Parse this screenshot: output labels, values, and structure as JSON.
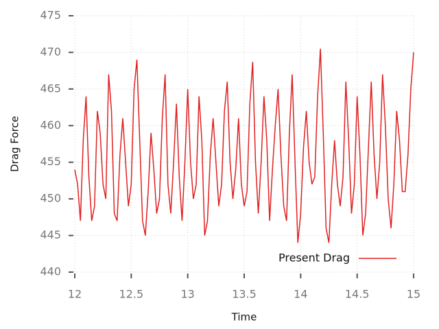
{
  "chart_data": {
    "type": "line",
    "xlabel": "Time",
    "ylabel": "Drag Force",
    "xlim": [
      12,
      15
    ],
    "xticks": [
      12,
      12.5,
      13,
      13.5,
      14,
      14.5,
      15
    ],
    "ylim": [
      440,
      475
    ],
    "yticks": [
      440,
      445,
      450,
      455,
      460,
      465,
      470,
      475
    ],
    "grid": true,
    "legend": "lower right",
    "x": [
      12,
      12.025,
      12.05,
      12.075,
      12.1,
      12.125,
      12.15,
      12.175,
      12.2,
      12.225,
      12.25,
      12.275,
      12.3,
      12.325,
      12.35,
      12.375,
      12.4,
      12.425,
      12.45,
      12.475,
      12.5,
      12.525,
      12.55,
      12.575,
      12.6,
      12.625,
      12.65,
      12.675,
      12.7,
      12.725,
      12.75,
      12.775,
      12.8,
      12.825,
      12.85,
      12.875,
      12.9,
      12.925,
      12.95,
      12.975,
      13,
      13.025,
      13.05,
      13.075,
      13.1,
      13.125,
      13.15,
      13.175,
      13.2,
      13.225,
      13.25,
      13.275,
      13.3,
      13.325,
      13.35,
      13.375,
      13.4,
      13.425,
      13.45,
      13.475,
      13.5,
      13.525,
      13.55,
      13.575,
      13.6,
      13.625,
      13.65,
      13.675,
      13.7,
      13.725,
      13.75,
      13.775,
      13.8,
      13.825,
      13.85,
      13.875,
      13.9,
      13.925,
      13.95,
      13.975,
      14,
      14.025,
      14.05,
      14.075,
      14.1,
      14.125,
      14.15,
      14.175,
      14.2,
      14.225,
      14.25,
      14.275,
      14.3,
      14.325,
      14.35,
      14.375,
      14.4,
      14.425,
      14.45,
      14.475,
      14.5,
      14.525,
      14.55,
      14.575,
      14.6,
      14.625,
      14.65,
      14.675,
      14.7,
      14.725,
      14.75,
      14.775,
      14.8,
      14.825,
      14.85,
      14.875,
      14.9,
      14.925,
      14.95,
      14.975,
      15
    ],
    "series": [
      {
        "name": "Present Drag",
        "color": "#e02020",
        "values": [
          454,
          452,
          447,
          458,
          464,
          453,
          447,
          449,
          462,
          459,
          452,
          450,
          467,
          462,
          448,
          447,
          456,
          461,
          455,
          449,
          452,
          465,
          469,
          458,
          447,
          445,
          451,
          459,
          454,
          448,
          450,
          461,
          467,
          452,
          448,
          455,
          463,
          453,
          447,
          455,
          465,
          455,
          450,
          452,
          464,
          458,
          445,
          447,
          456,
          461,
          455,
          449,
          452,
          462,
          466,
          455,
          450,
          454,
          461,
          452,
          449,
          451,
          463,
          468.7,
          455,
          448,
          455,
          464,
          458,
          447,
          454,
          460,
          465,
          456,
          449,
          447,
          459,
          467,
          455,
          444,
          448,
          457,
          462,
          455,
          452,
          453,
          464,
          470.5,
          459,
          446,
          444,
          452,
          458,
          452,
          449,
          453,
          466,
          458,
          448,
          452,
          464,
          456,
          445,
          448,
          457,
          466,
          456,
          450,
          455,
          467,
          460,
          450,
          446,
          452,
          462,
          458,
          451,
          451,
          456,
          465,
          470
        ]
      }
    ]
  }
}
